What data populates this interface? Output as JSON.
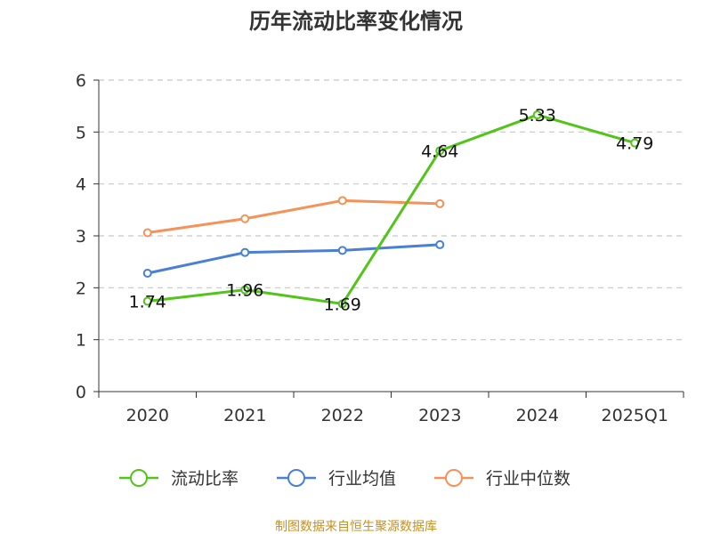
{
  "chart_data": {
    "type": "line",
    "title": "历年流动比率变化情况",
    "categories": [
      "2020",
      "2021",
      "2022",
      "2023",
      "2024",
      "2025Q1"
    ],
    "ylim": [
      0,
      6
    ],
    "yticks": [
      "0",
      "1",
      "2",
      "3",
      "4",
      "5",
      "6"
    ],
    "grid": true,
    "legend_position": "bottom",
    "series": [
      {
        "name": "流动比率",
        "color": "#52c41a",
        "values": [
          1.74,
          1.96,
          1.69,
          4.64,
          5.33,
          4.79
        ],
        "labels": [
          "1.74",
          "1.96",
          "1.69",
          "4.64",
          "5.33",
          "4.79"
        ]
      },
      {
        "name": "行业均值",
        "color": "#4a7fd6",
        "values": [
          2.28,
          2.68,
          2.72,
          2.83,
          null,
          null
        ]
      },
      {
        "name": "行业中位数",
        "color": "#f59258",
        "values": [
          3.06,
          3.33,
          3.68,
          3.62,
          null,
          null
        ]
      }
    ],
    "source": "制图数据来自恒生聚源数据库"
  }
}
